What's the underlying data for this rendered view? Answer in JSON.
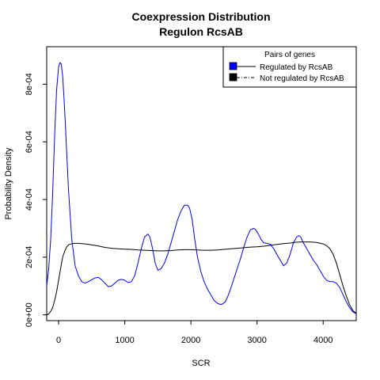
{
  "chart_data": {
    "type": "line",
    "title": "Coexpression Distribution",
    "subtitle": "Regulon RcsAB",
    "xlabel": "SCR",
    "ylabel": "Probability Density",
    "xlim": [
      -180,
      4500
    ],
    "ylim": [
      -2e-05,
      0.00093
    ],
    "xticks": [
      0,
      1000,
      2000,
      3000,
      4000
    ],
    "xtick_labels": [
      "0",
      "1000",
      "2000",
      "3000",
      "4000"
    ],
    "yticks": [
      0,
      0.0002,
      0.0004,
      0.0006,
      0.0008
    ],
    "ytick_labels": [
      "0e+00",
      "2e-04",
      "4e-04",
      "6e-04",
      "8e-04"
    ],
    "grid": false,
    "legend": {
      "title": "Pairs of genes",
      "position": "top-right",
      "entries": [
        "Regulated by  RcsAB",
        "Not regulated by  RcsAB"
      ]
    },
    "series": [
      {
        "name": "Regulated by  RcsAB",
        "color": "#0000ff",
        "x": [
          -180,
          -150,
          -120,
          -90,
          -60,
          -30,
          0,
          20,
          40,
          60,
          80,
          100,
          150,
          200,
          250,
          300,
          350,
          400,
          450,
          500,
          550,
          600,
          650,
          700,
          750,
          800,
          850,
          900,
          950,
          1000,
          1050,
          1100,
          1150,
          1200,
          1250,
          1300,
          1350,
          1380,
          1420,
          1460,
          1500,
          1550,
          1600,
          1650,
          1700,
          1750,
          1800,
          1850,
          1900,
          1950,
          1980,
          2020,
          2060,
          2100,
          2150,
          2200,
          2250,
          2300,
          2350,
          2400,
          2450,
          2480,
          2520,
          2560,
          2600,
          2650,
          2700,
          2750,
          2800,
          2850,
          2900,
          2950,
          2980,
          3020,
          3060,
          3100,
          3150,
          3200,
          3250,
          3300,
          3350,
          3400,
          3450,
          3500,
          3550,
          3600,
          3630,
          3660,
          3700,
          3750,
          3800,
          3850,
          3900,
          3950,
          4000,
          4050,
          4100,
          4150,
          4200,
          4250,
          4300,
          4350,
          4400,
          4450,
          4500
        ],
        "y": [
          0.0001,
          0.00016,
          0.00026,
          0.00042,
          0.00062,
          0.00078,
          0.00086,
          0.000875,
          0.00087,
          0.00083,
          0.00076,
          0.00067,
          0.00043,
          0.00026,
          0.00017,
          0.000135,
          0.000115,
          0.00011,
          0.000115,
          0.000122,
          0.000128,
          0.00013,
          0.000122,
          0.00011,
          9.8e-05,
          0.0001,
          0.00011,
          0.00012,
          0.000123,
          0.00012,
          0.000112,
          0.000115,
          0.000135,
          0.00018,
          0.00023,
          0.00027,
          0.00028,
          0.00027,
          0.00023,
          0.00018,
          0.000155,
          0.00016,
          0.00018,
          0.00021,
          0.00025,
          0.00029,
          0.00033,
          0.00036,
          0.00038,
          0.00038,
          0.00037,
          0.00033,
          0.00026,
          0.0002,
          0.00015,
          0.000115,
          9e-05,
          7e-05,
          5e-05,
          4e-05,
          3.6e-05,
          3.8e-05,
          4.5e-05,
          6.5e-05,
          9e-05,
          0.000125,
          0.00016,
          0.000195,
          0.000235,
          0.00027,
          0.000295,
          0.0003,
          0.000295,
          0.00028,
          0.000262,
          0.00025,
          0.000248,
          0.000245,
          0.00023,
          0.00021,
          0.00019,
          0.00017,
          0.00018,
          0.00021,
          0.00025,
          0.00027,
          0.000275,
          0.00027,
          0.00025,
          0.00023,
          0.00021,
          0.00019,
          0.000175,
          0.000155,
          0.000135,
          0.00012,
          0.000115,
          0.000115,
          0.00011,
          9.5e-05,
          7e-05,
          4.5e-05,
          2.5e-05,
          1e-05,
          4e-06
        ]
      },
      {
        "name": "Not regulated by  RcsAB",
        "color": "#000000",
        "x": [
          -180,
          -150,
          -120,
          -90,
          -60,
          -30,
          0,
          30,
          60,
          90,
          120,
          150,
          200,
          250,
          300,
          400,
          500,
          600,
          700,
          800,
          900,
          1000,
          1100,
          1200,
          1300,
          1400,
          1500,
          1600,
          1700,
          1800,
          1900,
          2000,
          2100,
          2200,
          2300,
          2400,
          2500,
          2600,
          2700,
          2800,
          2900,
          3000,
          3100,
          3200,
          3300,
          3400,
          3500,
          3600,
          3700,
          3800,
          3900,
          4000,
          4050,
          4100,
          4150,
          4200,
          4250,
          4300,
          4350,
          4400,
          4450,
          4500
        ],
        "y": [
          3e-07,
          3e-06,
          1.2e-05,
          2.5e-05,
          5e-05,
          8e-05,
          0.00012,
          0.00016,
          0.0002,
          0.00022,
          0.000235,
          0.000243,
          0.000247,
          0.000248,
          0.000248,
          0.000246,
          0.000243,
          0.000239,
          0.000234,
          0.000231,
          0.000229,
          0.000228,
          0.000227,
          0.000225,
          0.000224,
          0.000223,
          0.000222,
          0.000222,
          0.000223,
          0.000225,
          0.000226,
          0.000226,
          0.000225,
          0.000224,
          0.000224,
          0.000225,
          0.000227,
          0.000229,
          0.000231,
          0.000233,
          0.000235,
          0.000236,
          0.000238,
          0.000241,
          0.000244,
          0.000247,
          0.000249,
          0.000252,
          0.000253,
          0.000253,
          0.000251,
          0.000246,
          0.00024,
          0.00023,
          0.00021,
          0.00018,
          0.00014,
          0.0001,
          6.5e-05,
          3.5e-05,
          1.5e-05,
          5e-06
        ]
      }
    ]
  }
}
